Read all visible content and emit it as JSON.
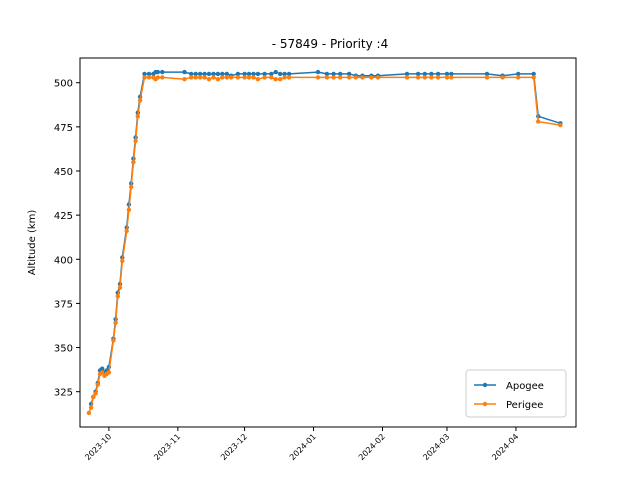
{
  "chart_data": {
    "type": "line",
    "title": "- 57849 - Priority :4",
    "xlabel": "",
    "ylabel": "Altitude (km)",
    "ylim": [
      305,
      514
    ],
    "xlim": [
      "2023-09-18",
      "2024-04-28"
    ],
    "y_ticks": [
      325,
      350,
      375,
      400,
      425,
      450,
      475,
      500
    ],
    "x_ticks": [
      "2023-10-01",
      "2023-11-01",
      "2023-12-01",
      "2024-01-01",
      "2024-02-01",
      "2024-03-01",
      "2024-04-01"
    ],
    "x_tick_labels": [
      "2023-10",
      "2023-11",
      "2023-12",
      "2024-01",
      "2024-02",
      "2024-03",
      "2024-04"
    ],
    "grid": false,
    "legend_position": "lower-right",
    "series": [
      {
        "name": "Apogee",
        "color": "#1f77b4",
        "points": [
          [
            "2023-09-23",
            318
          ],
          [
            "2023-09-24",
            322
          ],
          [
            "2023-09-25",
            325
          ],
          [
            "2023-09-26",
            330
          ],
          [
            "2023-09-27",
            337
          ],
          [
            "2023-09-28",
            338
          ],
          [
            "2023-09-29",
            336
          ],
          [
            "2023-09-30",
            337
          ],
          [
            "2023-10-01",
            339
          ],
          [
            "2023-10-03",
            355
          ],
          [
            "2023-10-04",
            366
          ],
          [
            "2023-10-05",
            381
          ],
          [
            "2023-10-06",
            386
          ],
          [
            "2023-10-07",
            401
          ],
          [
            "2023-10-09",
            418
          ],
          [
            "2023-10-10",
            431
          ],
          [
            "2023-10-11",
            443
          ],
          [
            "2023-10-12",
            457
          ],
          [
            "2023-10-13",
            469
          ],
          [
            "2023-10-14",
            483
          ],
          [
            "2023-10-15",
            492
          ],
          [
            "2023-10-17",
            505
          ],
          [
            "2023-10-19",
            505
          ],
          [
            "2023-10-21",
            505
          ],
          [
            "2023-10-22",
            506
          ],
          [
            "2023-10-23",
            506
          ],
          [
            "2023-10-25",
            506
          ],
          [
            "2023-11-04",
            506
          ],
          [
            "2023-11-07",
            505
          ],
          [
            "2023-11-09",
            505
          ],
          [
            "2023-11-11",
            505
          ],
          [
            "2023-11-13",
            505
          ],
          [
            "2023-11-15",
            505
          ],
          [
            "2023-11-17",
            505
          ],
          [
            "2023-11-19",
            505
          ],
          [
            "2023-11-21",
            505
          ],
          [
            "2023-11-23",
            505
          ],
          [
            "2023-11-25",
            504
          ],
          [
            "2023-11-28",
            505
          ],
          [
            "2023-12-01",
            505
          ],
          [
            "2023-12-03",
            505
          ],
          [
            "2023-12-05",
            505
          ],
          [
            "2023-12-07",
            505
          ],
          [
            "2023-12-10",
            505
          ],
          [
            "2023-12-13",
            505
          ],
          [
            "2023-12-15",
            506
          ],
          [
            "2023-12-17",
            505
          ],
          [
            "2023-12-19",
            505
          ],
          [
            "2023-12-21",
            505
          ],
          [
            "2024-01-03",
            506
          ],
          [
            "2024-01-07",
            505
          ],
          [
            "2024-01-10",
            505
          ],
          [
            "2024-01-13",
            505
          ],
          [
            "2024-01-17",
            505
          ],
          [
            "2024-01-20",
            504
          ],
          [
            "2024-01-23",
            504
          ],
          [
            "2024-01-27",
            504
          ],
          [
            "2024-01-30",
            504
          ],
          [
            "2024-02-12",
            505
          ],
          [
            "2024-02-17",
            505
          ],
          [
            "2024-02-20",
            505
          ],
          [
            "2024-02-23",
            505
          ],
          [
            "2024-02-26",
            505
          ],
          [
            "2024-03-01",
            505
          ],
          [
            "2024-03-03",
            505
          ],
          [
            "2024-03-19",
            505
          ],
          [
            "2024-03-26",
            504
          ],
          [
            "2024-04-02",
            505
          ],
          [
            "2024-04-09",
            505
          ],
          [
            "2024-04-11",
            481
          ],
          [
            "2024-04-21",
            477
          ]
        ]
      },
      {
        "name": "Perigee",
        "color": "#ff7f0e",
        "points": [
          [
            "2023-09-22",
            313
          ],
          [
            "2023-09-23",
            316
          ],
          [
            "2023-09-24",
            322
          ],
          [
            "2023-09-25",
            324
          ],
          [
            "2023-09-26",
            329
          ],
          [
            "2023-09-27",
            335
          ],
          [
            "2023-09-28",
            336
          ],
          [
            "2023-09-29",
            334
          ],
          [
            "2023-09-30",
            335
          ],
          [
            "2023-10-01",
            336
          ],
          [
            "2023-10-03",
            354
          ],
          [
            "2023-10-04",
            364
          ],
          [
            "2023-10-05",
            379
          ],
          [
            "2023-10-06",
            384
          ],
          [
            "2023-10-07",
            399
          ],
          [
            "2023-10-09",
            416
          ],
          [
            "2023-10-10",
            428
          ],
          [
            "2023-10-11",
            441
          ],
          [
            "2023-10-12",
            455
          ],
          [
            "2023-10-13",
            467
          ],
          [
            "2023-10-14",
            481
          ],
          [
            "2023-10-15",
            490
          ],
          [
            "2023-10-17",
            503
          ],
          [
            "2023-10-19",
            503
          ],
          [
            "2023-10-21",
            503
          ],
          [
            "2023-10-22",
            502
          ],
          [
            "2023-10-23",
            503
          ],
          [
            "2023-10-25",
            503
          ],
          [
            "2023-11-04",
            502
          ],
          [
            "2023-11-07",
            503
          ],
          [
            "2023-11-09",
            503
          ],
          [
            "2023-11-11",
            503
          ],
          [
            "2023-11-13",
            503
          ],
          [
            "2023-11-15",
            502
          ],
          [
            "2023-11-17",
            503
          ],
          [
            "2023-11-19",
            502
          ],
          [
            "2023-11-21",
            503
          ],
          [
            "2023-11-23",
            503
          ],
          [
            "2023-11-25",
            503
          ],
          [
            "2023-11-28",
            503
          ],
          [
            "2023-12-01",
            503
          ],
          [
            "2023-12-03",
            503
          ],
          [
            "2023-12-05",
            503
          ],
          [
            "2023-12-07",
            502
          ],
          [
            "2023-12-10",
            503
          ],
          [
            "2023-12-13",
            503
          ],
          [
            "2023-12-15",
            502
          ],
          [
            "2023-12-17",
            502
          ],
          [
            "2023-12-19",
            503
          ],
          [
            "2023-12-21",
            503
          ],
          [
            "2024-01-03",
            503
          ],
          [
            "2024-01-07",
            503
          ],
          [
            "2024-01-10",
            503
          ],
          [
            "2024-01-13",
            503
          ],
          [
            "2024-01-17",
            503
          ],
          [
            "2024-01-20",
            503
          ],
          [
            "2024-01-23",
            503
          ],
          [
            "2024-01-27",
            503
          ],
          [
            "2024-01-30",
            503
          ],
          [
            "2024-02-12",
            503
          ],
          [
            "2024-02-17",
            503
          ],
          [
            "2024-02-20",
            503
          ],
          [
            "2024-02-23",
            503
          ],
          [
            "2024-02-26",
            503
          ],
          [
            "2024-03-01",
            503
          ],
          [
            "2024-03-03",
            503
          ],
          [
            "2024-03-19",
            503
          ],
          [
            "2024-03-26",
            503
          ],
          [
            "2024-04-02",
            503
          ],
          [
            "2024-04-09",
            503
          ],
          [
            "2024-04-11",
            478
          ],
          [
            "2024-04-21",
            476
          ]
        ]
      }
    ]
  }
}
